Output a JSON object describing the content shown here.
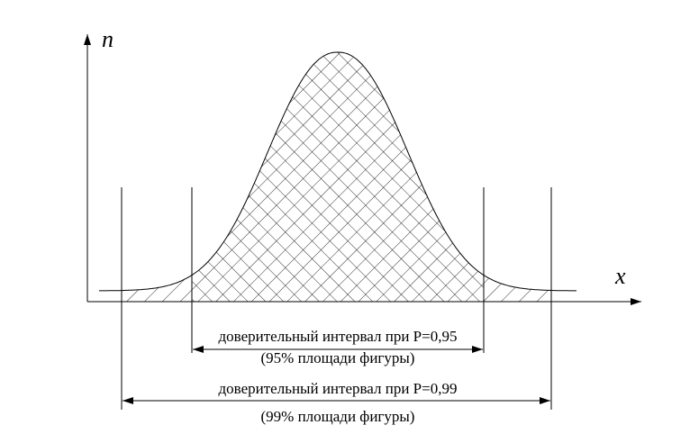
{
  "axes": {
    "y_label": "n",
    "x_label": "x"
  },
  "intervals": [
    {
      "label": "доверительный интервал при P=0,95",
      "note": "(95% площади фигуры)"
    },
    {
      "label": "доверительный интервал при P=0,99",
      "note": "(99% площади фигуры)"
    }
  ]
}
